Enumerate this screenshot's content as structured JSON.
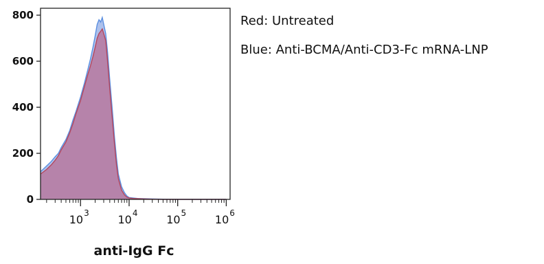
{
  "chart_data": {
    "type": "area",
    "title": "",
    "xlabel": "anti-IgG Fc",
    "ylabel": "",
    "x_scale": "log",
    "xlim": [
      150,
      1200000
    ],
    "ylim": [
      0,
      830
    ],
    "x_ticks": [
      {
        "value": 1000,
        "base": "10",
        "exp": "3"
      },
      {
        "value": 10000,
        "base": "10",
        "exp": "4"
      },
      {
        "value": 100000,
        "base": "10",
        "exp": "5"
      },
      {
        "value": 1000000,
        "base": "10",
        "exp": "6"
      }
    ],
    "y_ticks": [
      "0",
      "200",
      "400",
      "600",
      "800"
    ],
    "grid": false,
    "legend": [
      "Red: Untreated",
      "Blue: Anti-BCMA/Anti-CD3-Fc mRNA-LNP"
    ],
    "series": [
      {
        "color": "#b5465c",
        "fill": "#b9688f",
        "x": [
          150,
          200,
          250,
          300,
          350,
          400,
          500,
          600,
          700,
          800,
          1000,
          1200,
          1400,
          1600,
          1800,
          2000,
          2200,
          2400,
          2600,
          2800,
          3000,
          3300,
          3600,
          4000,
          4500,
          5000,
          5500,
          6000,
          7000,
          8000,
          9000,
          10000,
          12000,
          15000,
          20000,
          30000,
          50000,
          100000,
          1000000
        ],
        "y": [
          110,
          130,
          150,
          170,
          190,
          215,
          250,
          290,
          330,
          370,
          430,
          490,
          540,
          580,
          620,
          660,
          700,
          720,
          730,
          740,
          720,
          690,
          600,
          480,
          350,
          240,
          150,
          90,
          40,
          20,
          10,
          6,
          4,
          3,
          2,
          1,
          0,
          0,
          0
        ]
      },
      {
        "color": "#5b8fe0",
        "fill": "#9fb6e9",
        "x": [
          150,
          200,
          250,
          300,
          350,
          400,
          500,
          600,
          700,
          800,
          1000,
          1200,
          1400,
          1600,
          1800,
          2000,
          2200,
          2400,
          2600,
          2800,
          3000,
          3300,
          3600,
          4000,
          4500,
          5000,
          5500,
          6000,
          7000,
          8000,
          9000,
          10000,
          12000,
          15000,
          20000,
          30000,
          50000,
          100000,
          1000000
        ],
        "y": [
          120,
          145,
          165,
          185,
          200,
          225,
          260,
          300,
          345,
          380,
          445,
          505,
          560,
          610,
          660,
          710,
          760,
          780,
          770,
          790,
          760,
          720,
          640,
          520,
          390,
          270,
          180,
          110,
          55,
          30,
          15,
          8,
          6,
          4,
          3,
          2,
          1,
          0,
          0
        ]
      }
    ]
  }
}
